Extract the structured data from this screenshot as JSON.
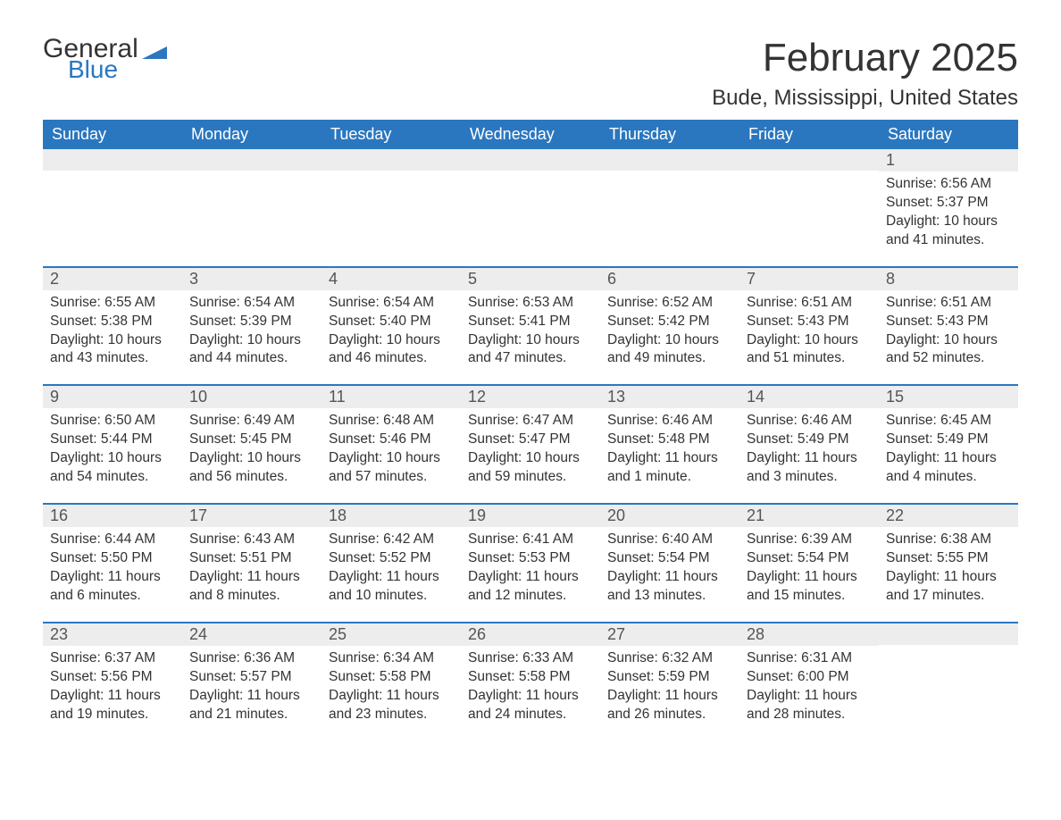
{
  "brand": {
    "part1": "General",
    "part2": "Blue",
    "brand_color": "#2a77c0"
  },
  "title": "February 2025",
  "location": "Bude, Mississippi, United States",
  "colors": {
    "header_bg": "#2a77c0",
    "header_text": "#ffffff",
    "daynum_bg": "#ededed",
    "row_border": "#2a77c0",
    "body_text": "#333333",
    "page_bg": "#ffffff"
  },
  "weekdays": [
    "Sunday",
    "Monday",
    "Tuesday",
    "Wednesday",
    "Thursday",
    "Friday",
    "Saturday"
  ],
  "weeks": [
    [
      {
        "n": "",
        "sunrise": "",
        "sunset": "",
        "daylight": ""
      },
      {
        "n": "",
        "sunrise": "",
        "sunset": "",
        "daylight": ""
      },
      {
        "n": "",
        "sunrise": "",
        "sunset": "",
        "daylight": ""
      },
      {
        "n": "",
        "sunrise": "",
        "sunset": "",
        "daylight": ""
      },
      {
        "n": "",
        "sunrise": "",
        "sunset": "",
        "daylight": ""
      },
      {
        "n": "",
        "sunrise": "",
        "sunset": "",
        "daylight": ""
      },
      {
        "n": "1",
        "sunrise": "Sunrise: 6:56 AM",
        "sunset": "Sunset: 5:37 PM",
        "daylight": "Daylight: 10 hours and 41 minutes."
      }
    ],
    [
      {
        "n": "2",
        "sunrise": "Sunrise: 6:55 AM",
        "sunset": "Sunset: 5:38 PM",
        "daylight": "Daylight: 10 hours and 43 minutes."
      },
      {
        "n": "3",
        "sunrise": "Sunrise: 6:54 AM",
        "sunset": "Sunset: 5:39 PM",
        "daylight": "Daylight: 10 hours and 44 minutes."
      },
      {
        "n": "4",
        "sunrise": "Sunrise: 6:54 AM",
        "sunset": "Sunset: 5:40 PM",
        "daylight": "Daylight: 10 hours and 46 minutes."
      },
      {
        "n": "5",
        "sunrise": "Sunrise: 6:53 AM",
        "sunset": "Sunset: 5:41 PM",
        "daylight": "Daylight: 10 hours and 47 minutes."
      },
      {
        "n": "6",
        "sunrise": "Sunrise: 6:52 AM",
        "sunset": "Sunset: 5:42 PM",
        "daylight": "Daylight: 10 hours and 49 minutes."
      },
      {
        "n": "7",
        "sunrise": "Sunrise: 6:51 AM",
        "sunset": "Sunset: 5:43 PM",
        "daylight": "Daylight: 10 hours and 51 minutes."
      },
      {
        "n": "8",
        "sunrise": "Sunrise: 6:51 AM",
        "sunset": "Sunset: 5:43 PM",
        "daylight": "Daylight: 10 hours and 52 minutes."
      }
    ],
    [
      {
        "n": "9",
        "sunrise": "Sunrise: 6:50 AM",
        "sunset": "Sunset: 5:44 PM",
        "daylight": "Daylight: 10 hours and 54 minutes."
      },
      {
        "n": "10",
        "sunrise": "Sunrise: 6:49 AM",
        "sunset": "Sunset: 5:45 PM",
        "daylight": "Daylight: 10 hours and 56 minutes."
      },
      {
        "n": "11",
        "sunrise": "Sunrise: 6:48 AM",
        "sunset": "Sunset: 5:46 PM",
        "daylight": "Daylight: 10 hours and 57 minutes."
      },
      {
        "n": "12",
        "sunrise": "Sunrise: 6:47 AM",
        "sunset": "Sunset: 5:47 PM",
        "daylight": "Daylight: 10 hours and 59 minutes."
      },
      {
        "n": "13",
        "sunrise": "Sunrise: 6:46 AM",
        "sunset": "Sunset: 5:48 PM",
        "daylight": "Daylight: 11 hours and 1 minute."
      },
      {
        "n": "14",
        "sunrise": "Sunrise: 6:46 AM",
        "sunset": "Sunset: 5:49 PM",
        "daylight": "Daylight: 11 hours and 3 minutes."
      },
      {
        "n": "15",
        "sunrise": "Sunrise: 6:45 AM",
        "sunset": "Sunset: 5:49 PM",
        "daylight": "Daylight: 11 hours and 4 minutes."
      }
    ],
    [
      {
        "n": "16",
        "sunrise": "Sunrise: 6:44 AM",
        "sunset": "Sunset: 5:50 PM",
        "daylight": "Daylight: 11 hours and 6 minutes."
      },
      {
        "n": "17",
        "sunrise": "Sunrise: 6:43 AM",
        "sunset": "Sunset: 5:51 PM",
        "daylight": "Daylight: 11 hours and 8 minutes."
      },
      {
        "n": "18",
        "sunrise": "Sunrise: 6:42 AM",
        "sunset": "Sunset: 5:52 PM",
        "daylight": "Daylight: 11 hours and 10 minutes."
      },
      {
        "n": "19",
        "sunrise": "Sunrise: 6:41 AM",
        "sunset": "Sunset: 5:53 PM",
        "daylight": "Daylight: 11 hours and 12 minutes."
      },
      {
        "n": "20",
        "sunrise": "Sunrise: 6:40 AM",
        "sunset": "Sunset: 5:54 PM",
        "daylight": "Daylight: 11 hours and 13 minutes."
      },
      {
        "n": "21",
        "sunrise": "Sunrise: 6:39 AM",
        "sunset": "Sunset: 5:54 PM",
        "daylight": "Daylight: 11 hours and 15 minutes."
      },
      {
        "n": "22",
        "sunrise": "Sunrise: 6:38 AM",
        "sunset": "Sunset: 5:55 PM",
        "daylight": "Daylight: 11 hours and 17 minutes."
      }
    ],
    [
      {
        "n": "23",
        "sunrise": "Sunrise: 6:37 AM",
        "sunset": "Sunset: 5:56 PM",
        "daylight": "Daylight: 11 hours and 19 minutes."
      },
      {
        "n": "24",
        "sunrise": "Sunrise: 6:36 AM",
        "sunset": "Sunset: 5:57 PM",
        "daylight": "Daylight: 11 hours and 21 minutes."
      },
      {
        "n": "25",
        "sunrise": "Sunrise: 6:34 AM",
        "sunset": "Sunset: 5:58 PM",
        "daylight": "Daylight: 11 hours and 23 minutes."
      },
      {
        "n": "26",
        "sunrise": "Sunrise: 6:33 AM",
        "sunset": "Sunset: 5:58 PM",
        "daylight": "Daylight: 11 hours and 24 minutes."
      },
      {
        "n": "27",
        "sunrise": "Sunrise: 6:32 AM",
        "sunset": "Sunset: 5:59 PM",
        "daylight": "Daylight: 11 hours and 26 minutes."
      },
      {
        "n": "28",
        "sunrise": "Sunrise: 6:31 AM",
        "sunset": "Sunset: 6:00 PM",
        "daylight": "Daylight: 11 hours and 28 minutes."
      },
      {
        "n": "",
        "sunrise": "",
        "sunset": "",
        "daylight": ""
      }
    ]
  ]
}
